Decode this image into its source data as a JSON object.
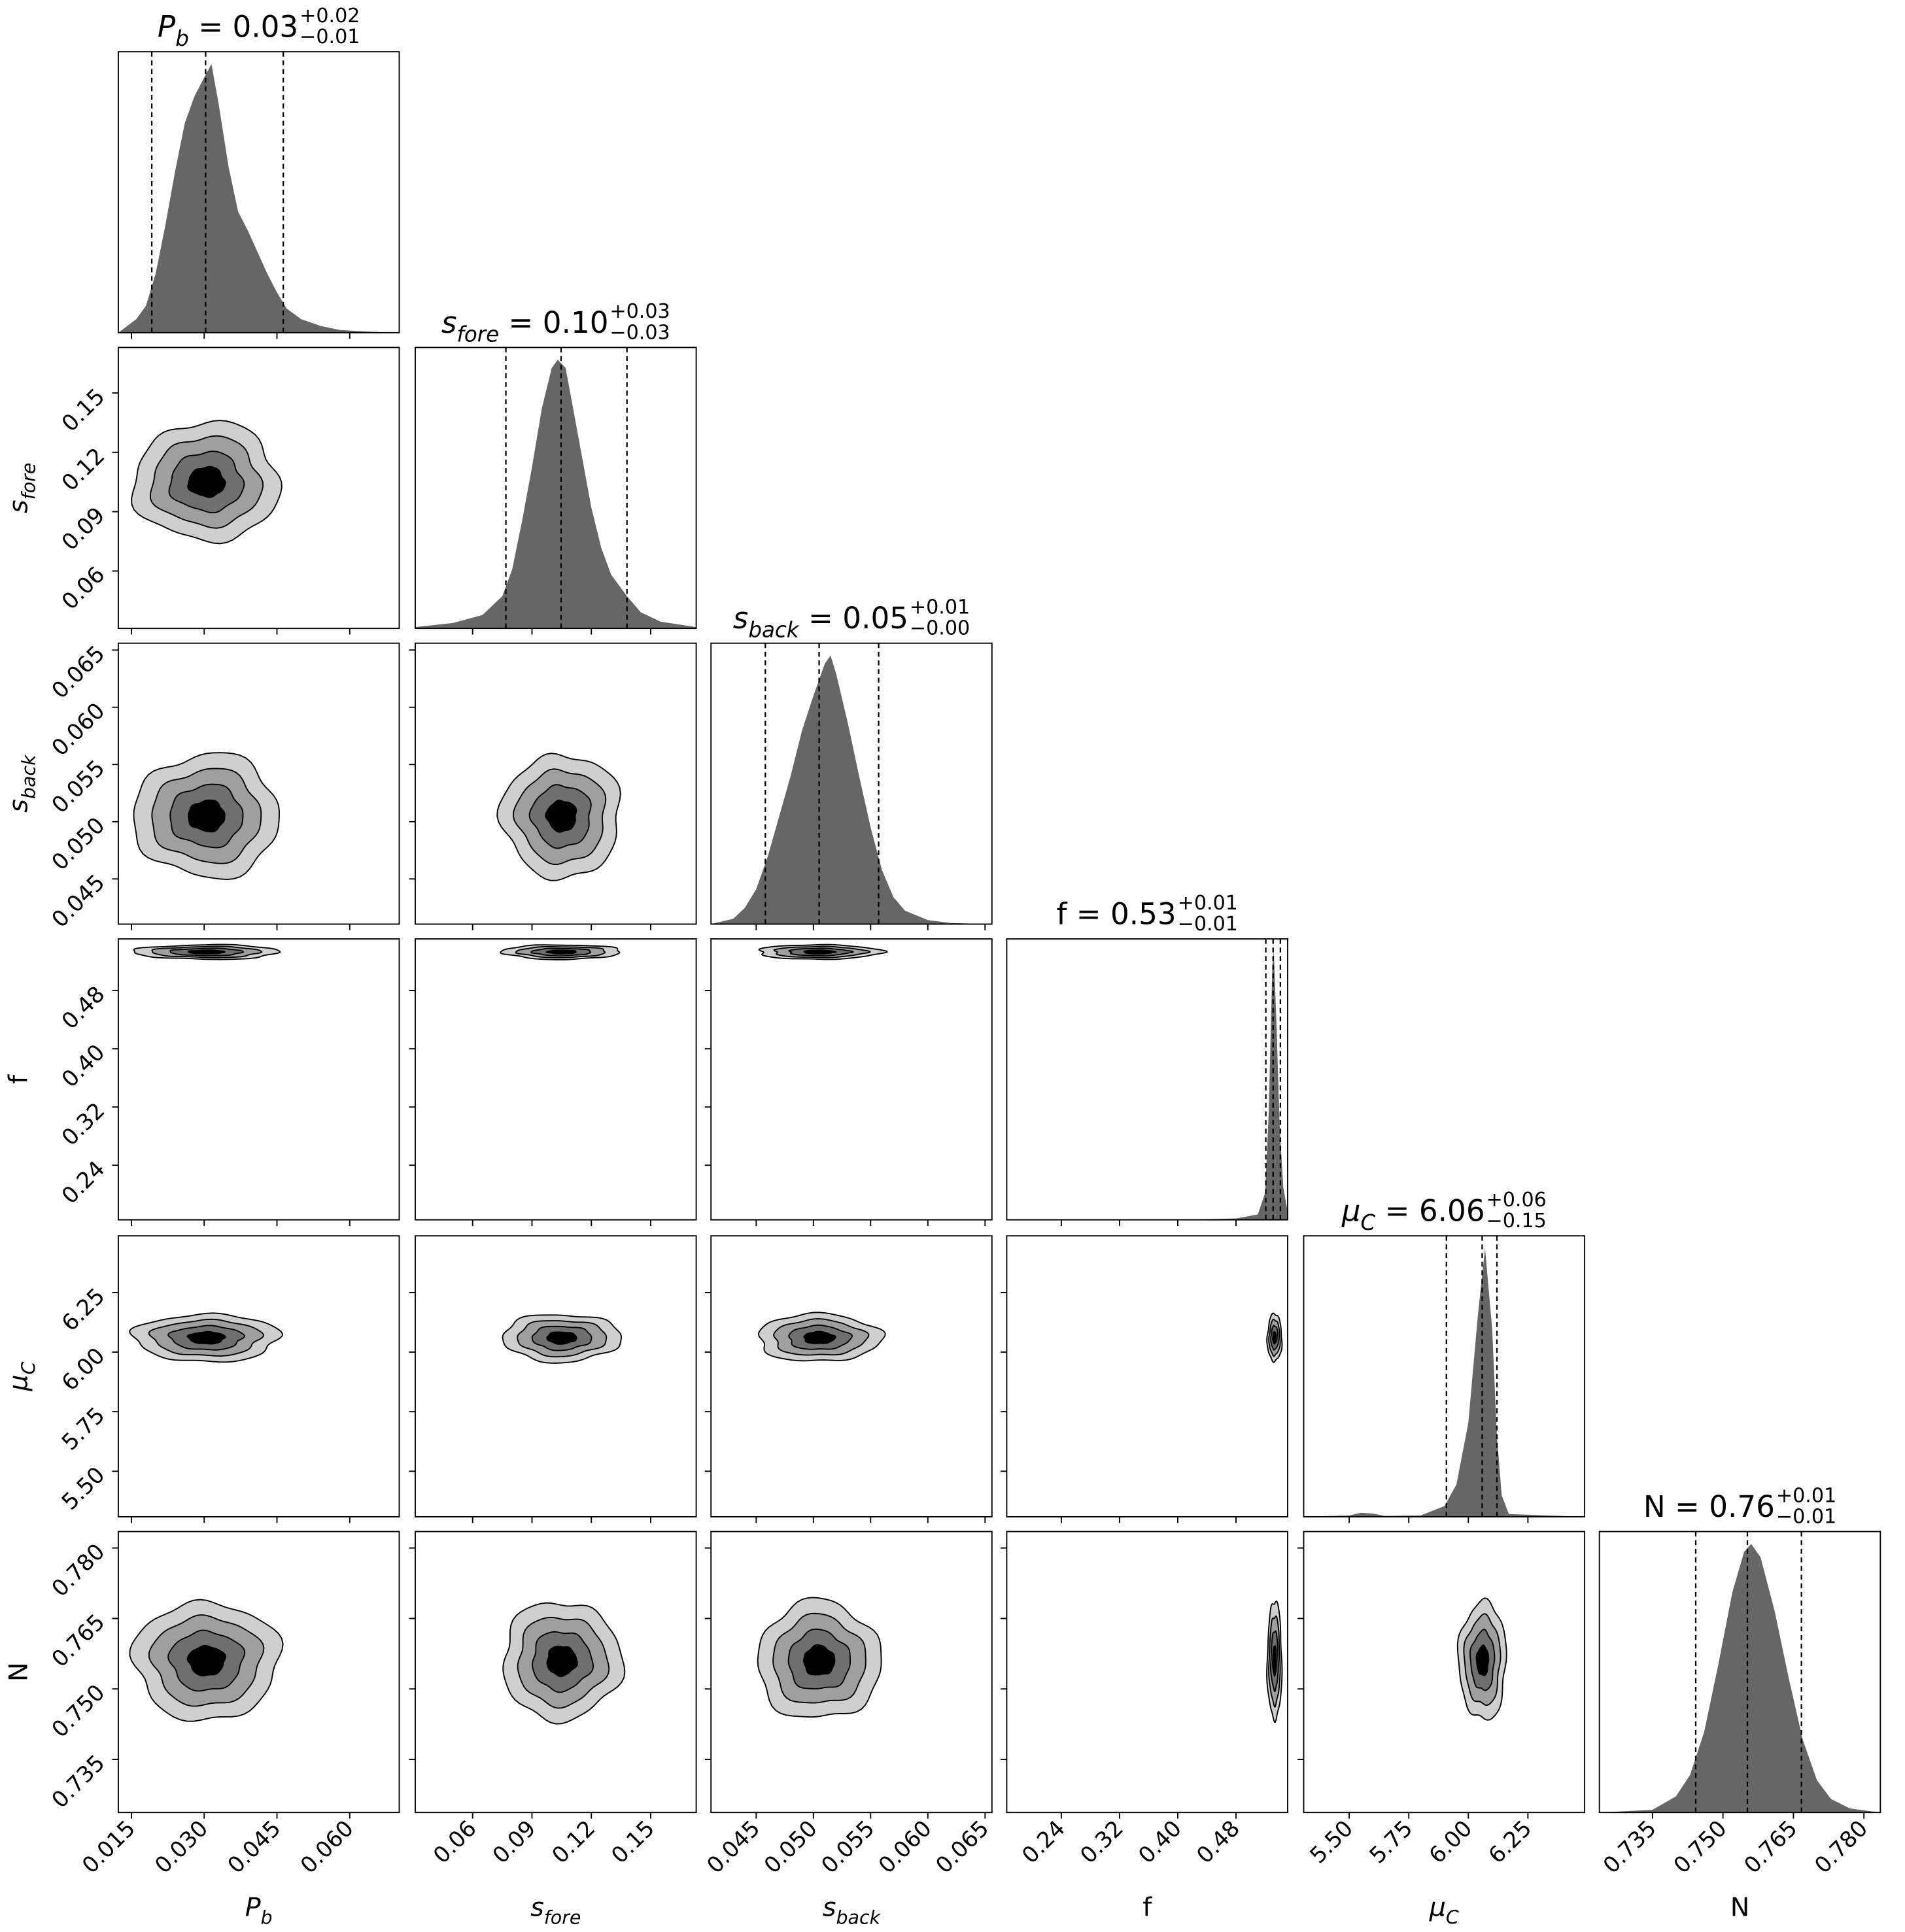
{
  "chart_data": {
    "type": "corner",
    "contour_levels_sigma": [
      2,
      1.5,
      1,
      0.5
    ],
    "contour_fills": [
      "#cfcfcf",
      "#9f9f9f",
      "#6f6f6f",
      "#000000"
    ],
    "hist_color": "#666666",
    "parameters": [
      {
        "key": "Pb",
        "label": {
          "main": "P",
          "sub": "b",
          "italic": true
        },
        "range": [
          0.0123,
          0.0702
        ],
        "ticks": [
          "0.015",
          "0.030",
          "0.045",
          "0.060"
        ],
        "title": {
          "value": "0.03",
          "plus": "+0.02",
          "minus": "−0.01",
          "eq": " = "
        },
        "quantiles": [
          0.0192,
          0.0303,
          0.0463
        ],
        "center": 0.0305,
        "sigma": 0.0075,
        "histogram": {
          "x": [
            0.0123,
            0.016,
            0.018,
            0.02,
            0.022,
            0.024,
            0.026,
            0.028,
            0.03,
            0.0315,
            0.033,
            0.035,
            0.037,
            0.039,
            0.041,
            0.043,
            0.045,
            0.047,
            0.05,
            0.054,
            0.058,
            0.065,
            0.0702
          ],
          "density": [
            0.0,
            0.05,
            0.1,
            0.22,
            0.4,
            0.6,
            0.78,
            0.88,
            0.95,
            1.0,
            0.85,
            0.62,
            0.45,
            0.38,
            0.3,
            0.22,
            0.15,
            0.09,
            0.05,
            0.025,
            0.01,
            0.003,
            0.0
          ]
        }
      },
      {
        "key": "sfore",
        "label": {
          "main": "s",
          "sub": "fore",
          "italic": true
        },
        "range": [
          0.031,
          0.173
        ],
        "ticks": [
          "0.06",
          "0.09",
          "0.12",
          "0.15"
        ],
        "title": {
          "value": "0.10",
          "plus": "+0.03",
          "minus": "−0.03",
          "eq": " = "
        },
        "quantiles": [
          0.0768,
          0.1047,
          0.138
        ],
        "center": 0.105,
        "sigma": 0.015,
        "histogram": {
          "x": [
            0.031,
            0.05,
            0.065,
            0.075,
            0.08,
            0.085,
            0.09,
            0.095,
            0.1,
            0.103,
            0.107,
            0.11,
            0.115,
            0.12,
            0.125,
            0.13,
            0.138,
            0.145,
            0.155,
            0.173
          ],
          "density": [
            0.005,
            0.02,
            0.05,
            0.12,
            0.22,
            0.4,
            0.6,
            0.82,
            0.97,
            1.0,
            0.97,
            0.85,
            0.65,
            0.45,
            0.3,
            0.2,
            0.12,
            0.06,
            0.025,
            0.005
          ]
        }
      },
      {
        "key": "sback",
        "label": {
          "main": "s",
          "sub": "back",
          "italic": true
        },
        "range": [
          0.04105,
          0.0656
        ],
        "ticks": [
          "0.045",
          "0.050",
          "0.055",
          "0.060",
          "0.065"
        ],
        "title": {
          "value": "0.05",
          "plus": "+0.01",
          "minus": "−0.00",
          "eq": " = "
        },
        "quantiles": [
          0.0458,
          0.0505,
          0.0557
        ],
        "center": 0.0505,
        "sigma": 0.0027,
        "histogram": {
          "x": [
            0.04105,
            0.043,
            0.044,
            0.045,
            0.046,
            0.047,
            0.048,
            0.049,
            0.05,
            0.051,
            0.0515,
            0.052,
            0.053,
            0.054,
            0.055,
            0.056,
            0.057,
            0.058,
            0.06,
            0.062,
            0.0656
          ],
          "density": [
            0.0,
            0.02,
            0.06,
            0.13,
            0.25,
            0.4,
            0.55,
            0.72,
            0.85,
            0.97,
            1.0,
            0.93,
            0.75,
            0.55,
            0.36,
            0.2,
            0.1,
            0.05,
            0.015,
            0.004,
            0.0
          ]
        }
      },
      {
        "key": "f",
        "label": {
          "main": "f",
          "sub": "",
          "italic": false
        },
        "range": [
          0.165,
          0.551
        ],
        "ticks": [
          "0.24",
          "0.32",
          "0.40",
          "0.48"
        ],
        "title": {
          "value": "0.53",
          "plus": "+0.01",
          "minus": "−0.01",
          "eq": " = "
        },
        "quantiles": [
          0.521,
          0.531,
          0.541
        ],
        "center": 0.533,
        "sigma": 0.005,
        "histogram": {
          "x": [
            0.165,
            0.4,
            0.48,
            0.51,
            0.52,
            0.525,
            0.53,
            0.532,
            0.536,
            0.54,
            0.545,
            0.551
          ],
          "density": [
            0.0,
            0.0,
            0.005,
            0.02,
            0.1,
            0.4,
            0.95,
            1.0,
            0.7,
            0.35,
            0.12,
            0.03
          ]
        }
      },
      {
        "key": "muC",
        "label": {
          "main": "μ",
          "sub": "C",
          "italic": true
        },
        "range": [
          5.309,
          6.488
        ],
        "ticks": [
          "5.50",
          "5.75",
          "6.00",
          "6.25"
        ],
        "title": {
          "value": "6.06",
          "plus": "+0.06",
          "minus": "−0.15",
          "eq": " = "
        },
        "quantiles": [
          5.908,
          6.058,
          6.12
        ],
        "center": 6.06,
        "sigma": 0.05,
        "histogram": {
          "x": [
            5.309,
            5.5,
            5.55,
            5.6,
            5.65,
            5.8,
            5.9,
            5.95,
            6.0,
            6.04,
            6.07,
            6.1,
            6.12,
            6.14,
            6.17,
            6.488
          ],
          "density": [
            0.0,
            0.005,
            0.015,
            0.012,
            0.003,
            0.005,
            0.04,
            0.12,
            0.35,
            0.75,
            1.0,
            0.7,
            0.3,
            0.08,
            0.01,
            0.0
          ]
        }
      },
      {
        "key": "N",
        "label": {
          "main": "N",
          "sub": "",
          "italic": false
        },
        "range": [
          0.7237,
          0.7835
        ],
        "ticks": [
          "0.735",
          "0.750",
          "0.765",
          "0.780"
        ],
        "title": {
          "value": "0.76",
          "plus": "+0.01",
          "minus": "−0.01",
          "eq": " = "
        },
        "quantiles": [
          0.7442,
          0.7552,
          0.7667
        ],
        "center": 0.756,
        "sigma": 0.0063,
        "histogram": {
          "x": [
            0.7237,
            0.735,
            0.74,
            0.743,
            0.746,
            0.749,
            0.752,
            0.7545,
            0.756,
            0.758,
            0.761,
            0.764,
            0.767,
            0.77,
            0.773,
            0.777,
            0.7835
          ],
          "density": [
            0.0,
            0.01,
            0.06,
            0.14,
            0.3,
            0.55,
            0.82,
            0.97,
            1.0,
            0.95,
            0.75,
            0.5,
            0.27,
            0.12,
            0.05,
            0.015,
            0.0
          ]
        }
      }
    ]
  }
}
